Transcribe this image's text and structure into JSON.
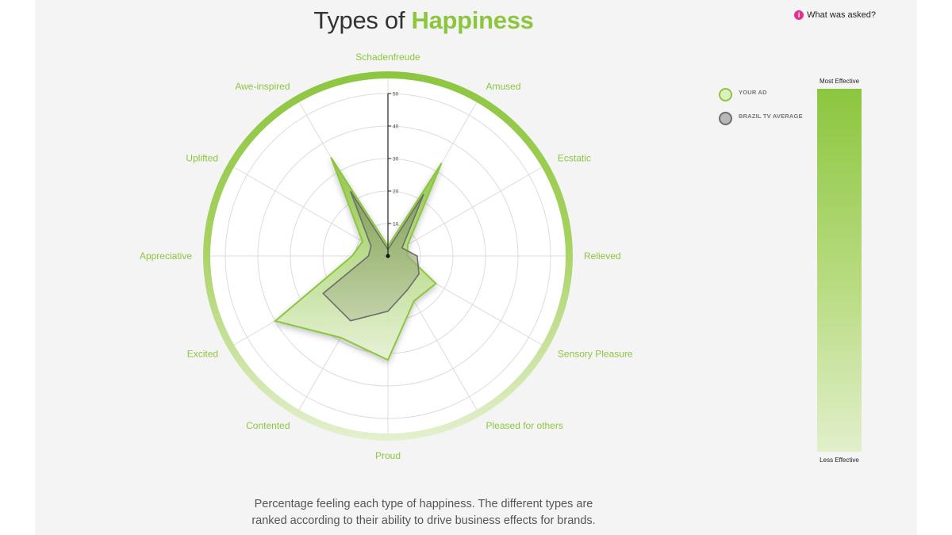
{
  "header": {
    "title_prefix": "Types of ",
    "title_accent": "Happiness",
    "help_label": "What was asked?",
    "help_icon": "info-icon"
  },
  "legend": {
    "your_ad": "YOUR AD",
    "average": "BRAZIL TV AVERAGE"
  },
  "scale": {
    "top_label": "Most Effective",
    "bottom_label": "Less Effective"
  },
  "caption": {
    "line1": "Percentage feeling each type of happiness. The different types are",
    "line2": "ranked according to their ability to drive business effects for brands."
  },
  "colors": {
    "accent": "#8cc63f",
    "your_ad_fill": "#b5d97a",
    "average_stroke": "#6e6e6e",
    "average_fill": "#8a8a8a",
    "help_dot": "#e5318d"
  },
  "chart_data": {
    "type": "radar",
    "categories": [
      "Schadenfreude",
      "Amused",
      "Ecstatic",
      "Relieved",
      "Sensory Pleasure",
      "Pleased for others",
      "Proud",
      "Contented",
      "Excited",
      "Appreciative",
      "Uplifted",
      "Awe-inspired"
    ],
    "ticks": [
      10,
      20,
      30,
      40,
      50
    ],
    "rlim": [
      0,
      50
    ],
    "series": [
      {
        "name": "YOUR AD",
        "values": [
          3,
          33,
          7,
          6,
          17,
          16,
          32,
          29,
          40,
          11,
          9,
          35
        ]
      },
      {
        "name": "BRAZIL TV AVERAGE",
        "values": [
          2,
          22,
          5,
          9,
          11,
          12,
          17,
          23,
          23,
          6,
          6,
          23
        ]
      }
    ]
  }
}
